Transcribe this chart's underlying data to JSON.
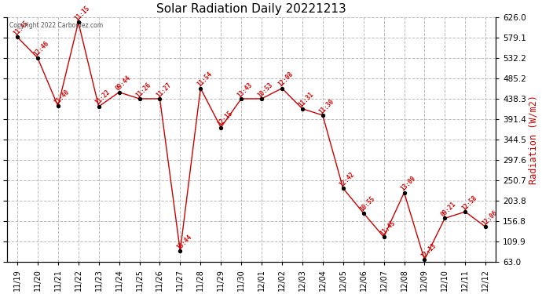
{
  "title": "Solar Radiation Daily 20221213",
  "ylabel_right": "Radiation (W/m2)",
  "copyright_text": "Copyright 2022 Carbonfez.com",
  "ylim": [
    63.0,
    626.0
  ],
  "yticks": [
    63.0,
    109.9,
    156.8,
    203.8,
    250.7,
    297.6,
    344.5,
    391.4,
    438.3,
    485.2,
    532.2,
    579.1,
    626.0
  ],
  "dates": [
    "11/19",
    "11/20",
    "11/21",
    "11/22",
    "11/23",
    "11/24",
    "11/25",
    "11/26",
    "11/27",
    "11/28",
    "11/29",
    "11/30",
    "12/01",
    "12/02",
    "12/03",
    "12/04",
    "12/05",
    "12/06",
    "12/07",
    "12/08",
    "12/09",
    "12/10",
    "12/11",
    "12/12"
  ],
  "values": [
    580,
    532,
    421,
    614,
    420,
    453,
    438,
    438,
    88,
    462,
    372,
    438,
    438,
    462,
    415,
    400,
    232,
    175,
    120,
    222,
    68,
    163,
    178,
    143
  ],
  "time_labels": [
    "11:45",
    "12:46",
    "11:40",
    "11:15",
    "11:22",
    "09:44",
    "11:26",
    "11:27",
    "13:44",
    "11:54",
    "12:15",
    "13:43",
    "10:53",
    "12:08",
    "11:31",
    "11:30",
    "12:42",
    "10:55",
    "11:45",
    "13:09",
    "12:13",
    "09:21",
    "12:58",
    "12:06"
  ],
  "line_color": "#cc0000",
  "marker_color": "#000000",
  "label_color": "#cc0000",
  "bg_color": "#ffffff",
  "grid_color": "#bbbbbb",
  "title_color": "#000000",
  "right_ylabel_color": "#cc0000",
  "figsize": [
    6.9,
    3.75
  ],
  "dpi": 100
}
